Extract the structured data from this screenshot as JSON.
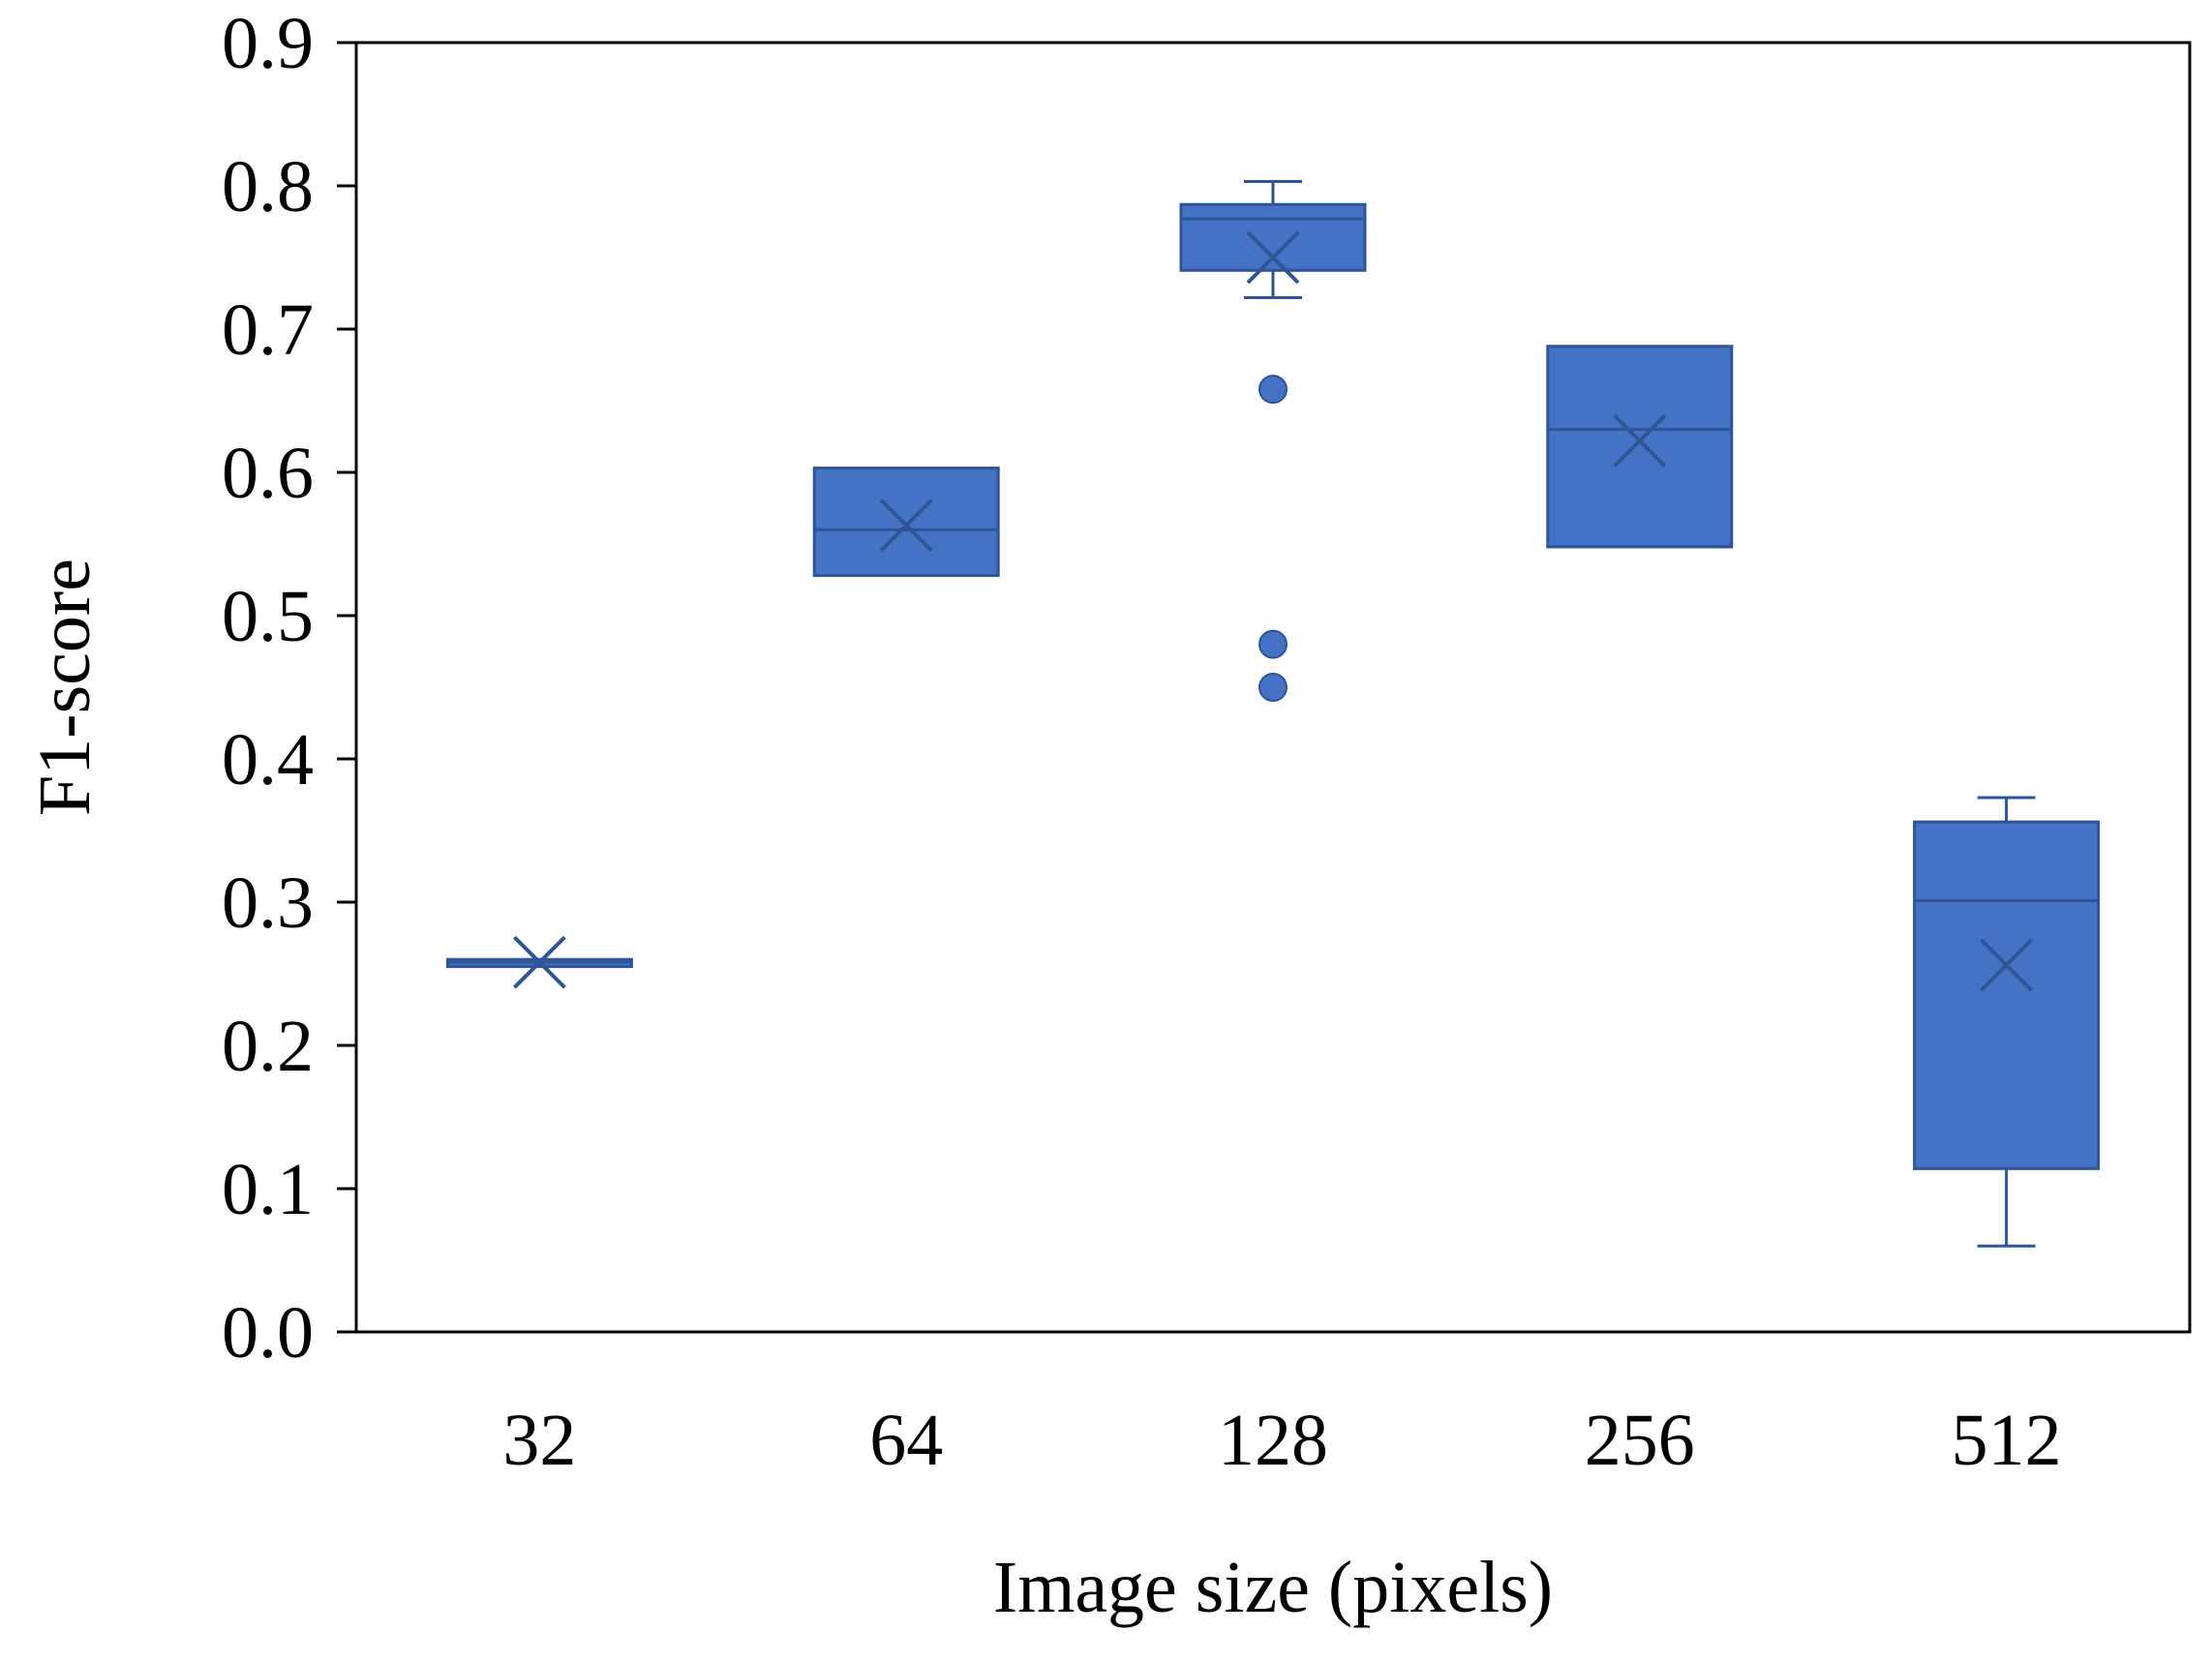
{
  "chart_data": {
    "type": "box",
    "title": "",
    "xlabel": "Image size (pixels)",
    "ylabel": "F1-score",
    "ylim": [
      0,
      0.9
    ],
    "yticks": [
      "0.0",
      "0.1",
      "0.2",
      "0.3",
      "0.4",
      "0.5",
      "0.6",
      "0.7",
      "0.8",
      "0.9"
    ],
    "categories": [
      "32",
      "64",
      "128",
      "256",
      "512"
    ],
    "grid": false,
    "legend": "none",
    "colors": {
      "box_fill": "#4472C4",
      "box_stroke": "#2F5597",
      "axis": "#000000"
    },
    "boxes": [
      {
        "category": "32",
        "min": 0.255,
        "q1": 0.255,
        "median": 0.258,
        "q3": 0.26,
        "max": 0.26,
        "mean": 0.258,
        "outliers": []
      },
      {
        "category": "64",
        "min": 0.528,
        "q1": 0.528,
        "median": 0.56,
        "q3": 0.603,
        "max": 0.603,
        "mean": 0.563,
        "outliers": []
      },
      {
        "category": "128",
        "min": 0.722,
        "q1": 0.741,
        "median": 0.777,
        "q3": 0.787,
        "max": 0.803,
        "mean": 0.75,
        "outliers": [
          0.658,
          0.48,
          0.45
        ]
      },
      {
        "category": "256",
        "min": 0.548,
        "q1": 0.548,
        "median": 0.63,
        "q3": 0.688,
        "max": 0.688,
        "mean": 0.622,
        "outliers": []
      },
      {
        "category": "512",
        "min": 0.06,
        "q1": 0.114,
        "median": 0.301,
        "q3": 0.356,
        "max": 0.373,
        "mean": 0.256,
        "outliers": []
      }
    ]
  }
}
